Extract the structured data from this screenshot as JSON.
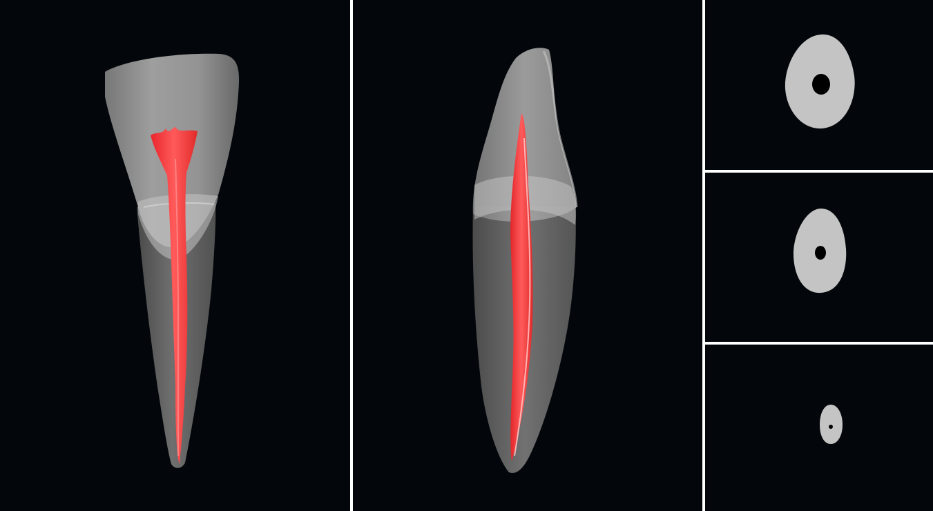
{
  "figure": {
    "background_color": "#03060a",
    "divider_color": "#ffffff",
    "tooth_crown_color": "#9a9a9a",
    "tooth_root_color": "#6f6f6f",
    "enamel_band_color": "#c9c9c9",
    "canal_color": "#ff3b3b",
    "section_tissue_color": "#c4c4c4",
    "section_canal_color": "#000000"
  },
  "panels": [
    {
      "view": "labial-3d-render"
    },
    {
      "view": "proximal-3d-render"
    },
    {
      "view": "cross-section-cervical"
    },
    {
      "view": "cross-section-middle"
    },
    {
      "view": "cross-section-apical"
    }
  ]
}
